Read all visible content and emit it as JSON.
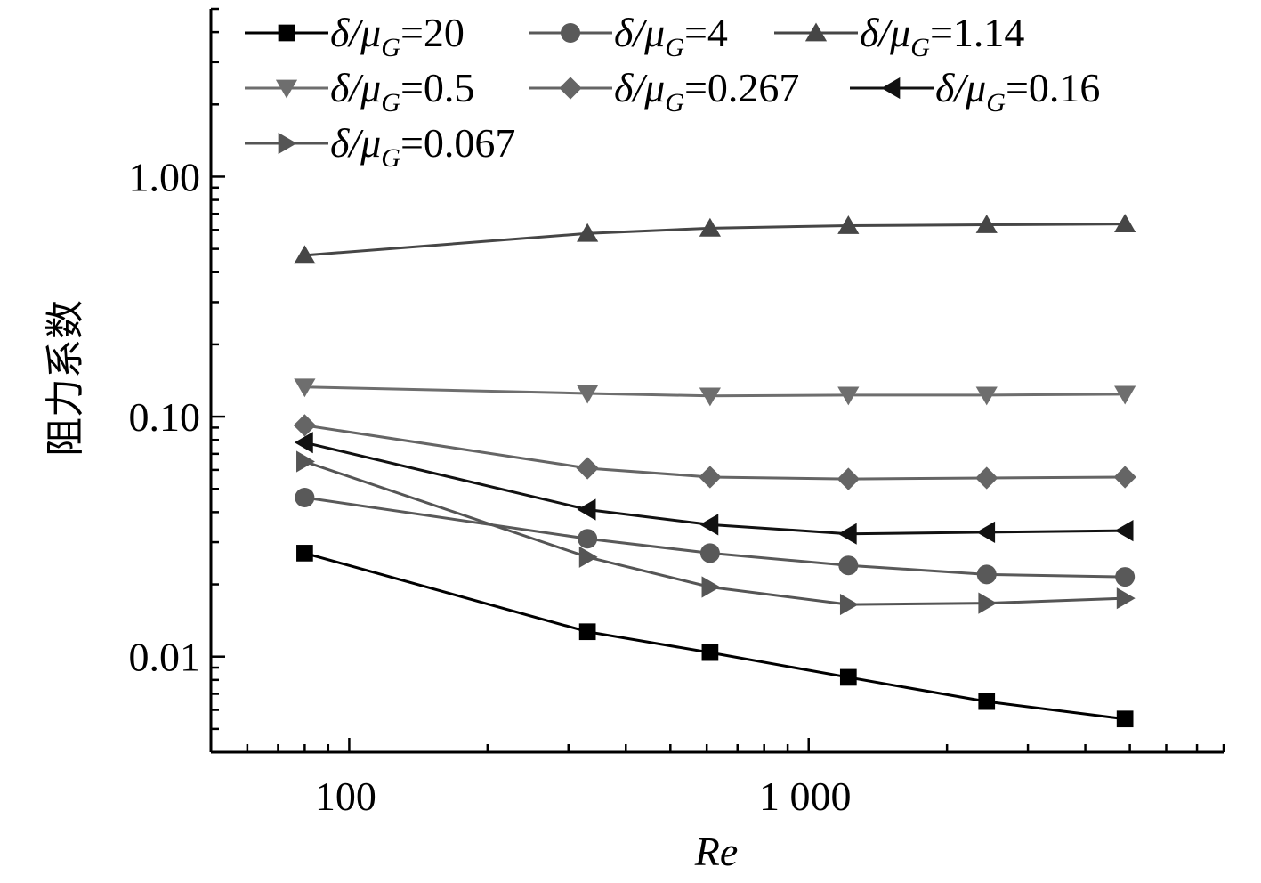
{
  "chart_data": {
    "type": "line",
    "title": "",
    "xlabel": "Re",
    "ylabel": "阻力系数",
    "xscale": "log",
    "yscale": "log",
    "xlim": [
      50,
      8000
    ],
    "ylim": [
      0.004,
      5
    ],
    "xticks": [
      {
        "value": 100,
        "label": "100"
      },
      {
        "value": 1000,
        "label": "1 000"
      }
    ],
    "yticks": [
      {
        "value": 0.01,
        "label": "0.01"
      },
      {
        "value": 0.1,
        "label": "0.10"
      },
      {
        "value": 1,
        "label": "1.00"
      }
    ],
    "legend_position": "top",
    "x": [
      80,
      330,
      610,
      1220,
      2440,
      4880
    ],
    "series": [
      {
        "name": "δ/μG=20",
        "ratio": "20",
        "marker": "square",
        "color": "#000000",
        "values": [
          0.027,
          0.0127,
          0.0104,
          0.0082,
          0.0065,
          0.0055
        ]
      },
      {
        "name": "δ/μG=4",
        "ratio": "4",
        "marker": "circle",
        "color": "#595959",
        "values": [
          0.046,
          0.031,
          0.027,
          0.024,
          0.022,
          0.0215
        ]
      },
      {
        "name": "δ/μG=1.14",
        "ratio": "1.14",
        "marker": "triangle-up",
        "color": "#464646",
        "values": [
          0.47,
          0.58,
          0.61,
          0.625,
          0.63,
          0.635
        ]
      },
      {
        "name": "δ/μG=0.5",
        "ratio": "0.5",
        "marker": "triangle-down",
        "color": "#6e6e6e",
        "values": [
          0.133,
          0.125,
          0.122,
          0.123,
          0.123,
          0.124
        ]
      },
      {
        "name": "δ/μG=0.267",
        "ratio": "0.267",
        "marker": "diamond",
        "color": "#656565",
        "values": [
          0.092,
          0.061,
          0.056,
          0.055,
          0.0555,
          0.056
        ]
      },
      {
        "name": "δ/μG=0.16",
        "ratio": "0.16",
        "marker": "triangle-left",
        "color": "#111111",
        "values": [
          0.078,
          0.041,
          0.0355,
          0.0325,
          0.033,
          0.0335
        ]
      },
      {
        "name": "δ/μG=0.067",
        "ratio": "0.067",
        "marker": "triangle-right",
        "color": "#555555",
        "values": [
          0.065,
          0.026,
          0.0195,
          0.0165,
          0.0167,
          0.0175
        ]
      }
    ]
  }
}
